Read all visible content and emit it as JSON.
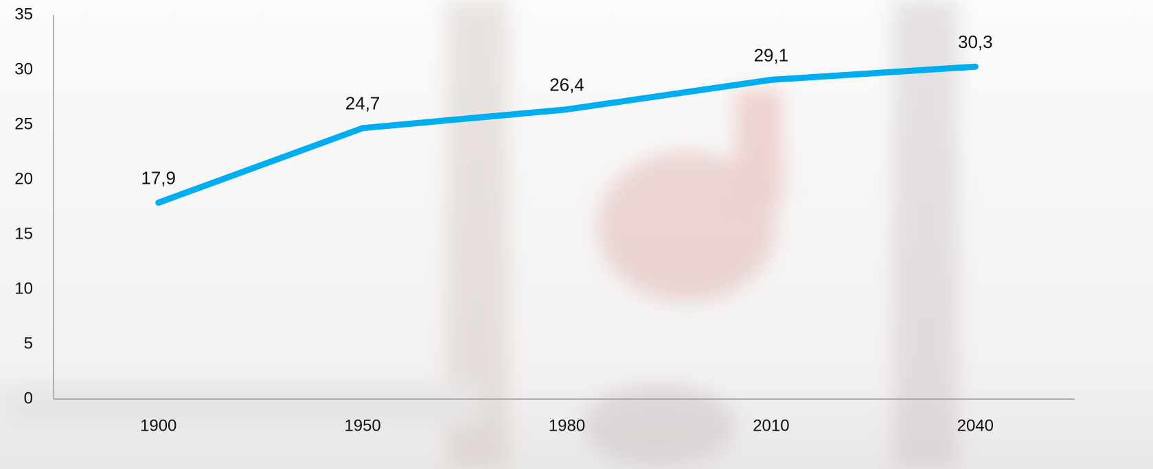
{
  "chart_data": {
    "type": "line",
    "categories": [
      "1900",
      "1950",
      "1980",
      "2010",
      "2040"
    ],
    "values": [
      17.9,
      24.7,
      26.4,
      29.1,
      30.3
    ],
    "value_labels": [
      "17,9",
      "24,7",
      "26,4",
      "29,1",
      "30,3"
    ],
    "color": "#00aeef",
    "ylim": [
      0,
      35
    ],
    "yticks": [
      0,
      5,
      10,
      15,
      20,
      25,
      30,
      35
    ],
    "grid": false
  }
}
